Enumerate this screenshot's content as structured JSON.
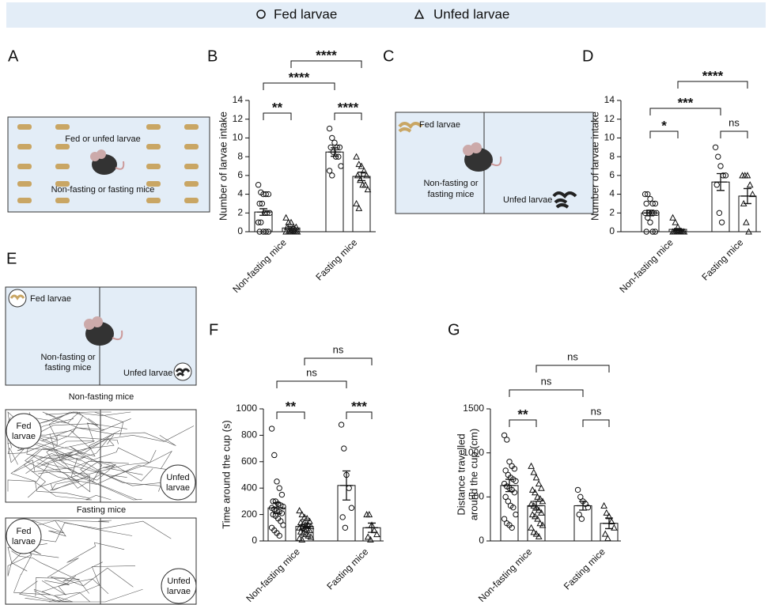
{
  "legend": [
    "Fed larvae",
    "Unfed larvae"
  ],
  "panel_labels": [
    "A",
    "B",
    "C",
    "D",
    "E",
    "F",
    "G"
  ],
  "diagram_a": {
    "top_label": "Fed or unfed larvae",
    "bottom_label": "Non-fasting or fasting mice"
  },
  "diagram_c": {
    "fed_label": "Fed larvae",
    "mouse_label": [
      "Non-fasting or",
      "fasting mice"
    ],
    "unfed_label": "Unfed larvae"
  },
  "diagram_e": {
    "fed_label": "Fed larvae",
    "mouse_label": [
      "Non-fasting or",
      "fasting mice"
    ],
    "unfed_label": "Unfed larvae"
  },
  "tracks": [
    {
      "title": "Non-fasting mice",
      "fed_label": [
        "Fed",
        "larvae"
      ],
      "unfed_label": [
        "Unfed",
        "larvae"
      ]
    },
    {
      "title": "Fasting mice",
      "fed_label": [
        "Fed",
        "larvae"
      ],
      "unfed_label": [
        "Unfed",
        "larvae"
      ]
    }
  ],
  "chart_data": [
    {
      "type": "bar",
      "ylabel": [
        "Number of larvae intake"
      ],
      "categories": [
        "Non-fasting mice",
        "Fasting mice"
      ],
      "ylim": [
        0,
        14
      ],
      "yticks": [
        0,
        2,
        4,
        6,
        8,
        10,
        12,
        14
      ],
      "series": [
        {
          "values": [
            2.1,
            8.5
          ],
          "errors": [
            0.35,
            0.45
          ],
          "points": [
            [
              5,
              4.2,
              4,
              4,
              4,
              3,
              3,
              2,
              2,
              2,
              1,
              1,
              0,
              0,
              0,
              0
            ],
            [
              11,
              10,
              9.5,
              9,
              9,
              9,
              8.5,
              8,
              8,
              7,
              6.5,
              6
            ]
          ]
        },
        {
          "values": [
            0.4,
            5.9
          ],
          "errors": [
            0.15,
            0.45
          ],
          "points": [
            [
              1.5,
              1,
              1,
              0.5,
              0.5,
              0.5,
              0,
              0,
              0,
              0,
              0,
              0,
              0,
              0,
              0
            ],
            [
              8,
              7.2,
              7,
              6.5,
              6,
              6,
              5.5,
              5,
              5,
              4.5,
              3,
              2.5
            ]
          ]
        }
      ],
      "annotations": [
        "****",
        "****",
        "**",
        "****"
      ]
    },
    {
      "type": "bar",
      "ylabel": [
        "Number of larvae intake"
      ],
      "categories": [
        "Non-fasting mice",
        "Fasting mice"
      ],
      "ylim": [
        0,
        14
      ],
      "yticks": [
        0,
        2,
        4,
        6,
        8,
        10,
        12,
        14
      ],
      "series": [
        {
          "values": [
            2,
            5.3
          ],
          "errors": [
            0.3,
            0.9
          ],
          "points": [
            [
              4,
              4,
              3.5,
              3,
              3,
              3,
              2,
              2,
              2,
              2,
              2,
              1.5,
              1,
              0,
              0,
              0
            ],
            [
              9,
              8,
              7,
              6,
              6,
              5,
              2,
              1
            ]
          ]
        },
        {
          "values": [
            0.25,
            3.8
          ],
          "errors": [
            0.1,
            0.8
          ],
          "points": [
            [
              1.5,
              1,
              0.5,
              0,
              0,
              0,
              0,
              0,
              0,
              0,
              0,
              0,
              0,
              0,
              0
            ],
            [
              6,
              6,
              6,
              5,
              4,
              3,
              1,
              0
            ]
          ]
        }
      ],
      "annotations": [
        "****",
        "***",
        "*",
        "ns"
      ]
    },
    {
      "type": "bar",
      "ylabel": [
        "Time around the cup (s)"
      ],
      "categories": [
        "Non-fasting mice",
        "Fasting mice"
      ],
      "ylim": [
        0,
        1000
      ],
      "yticks": [
        0,
        200,
        400,
        600,
        800,
        1000
      ],
      "series": [
        {
          "values": [
            250,
            420
          ],
          "errors": [
            40,
            110
          ],
          "points": [
            [
              850,
              650,
              450,
              400,
              350,
              300,
              300,
              280,
              270,
              260,
              250,
              240,
              230,
              220,
              210,
              200,
              190,
              170,
              150,
              120,
              100,
              80,
              60,
              40
            ],
            [
              880,
              700,
              500,
              400,
              250,
              180,
              100
            ]
          ]
        },
        {
          "values": [
            110,
            100
          ],
          "errors": [
            15,
            35
          ],
          "points": [
            [
              230,
              200,
              180,
              170,
              150,
              140,
              130,
              120,
              120,
              110,
              100,
              100,
              90,
              90,
              80,
              70,
              60,
              50,
              40,
              30,
              20,
              10
            ],
            [
              200,
              200,
              120,
              80,
              50,
              30,
              10
            ]
          ]
        }
      ],
      "annotations": [
        "ns",
        "ns",
        "**",
        "***"
      ]
    },
    {
      "type": "bar",
      "ylabel": [
        "Distance travelled",
        "around the cup (cm)"
      ],
      "categories": [
        "Non-fasting mice",
        "Fasting mice"
      ],
      "ylim": [
        0,
        1500
      ],
      "yticks": [
        0,
        500,
        1000,
        1500
      ],
      "series": [
        {
          "values": [
            630,
            400
          ],
          "errors": [
            70,
            50
          ],
          "points": [
            [
              1200,
              1150,
              900,
              850,
              820,
              800,
              750,
              720,
              700,
              680,
              650,
              620,
              600,
              580,
              550,
              500,
              450,
              400,
              380,
              300,
              250,
              200,
              180,
              150
            ],
            [
              580,
              500,
              450,
              420,
              380,
              300,
              250
            ]
          ]
        },
        {
          "values": [
            400,
            200
          ],
          "errors": [
            50,
            60
          ],
          "points": [
            [
              850,
              780,
              720,
              650,
              600,
              580,
              550,
              500,
              480,
              450,
              420,
              400,
              380,
              350,
              320,
              300,
              280,
              250,
              200,
              180,
              150,
              100,
              80,
              50
            ],
            [
              400,
              320,
              280,
              220,
              150,
              80,
              30
            ]
          ]
        }
      ],
      "annotations": [
        "ns",
        "ns",
        "**",
        "ns"
      ]
    }
  ]
}
